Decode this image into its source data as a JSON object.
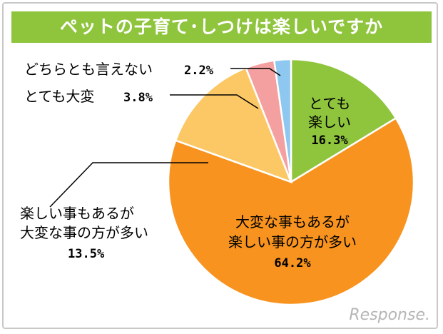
{
  "chart_data": {
    "type": "pie",
    "title": "ペットの子育て･しつけは楽しいですか",
    "slices": [
      {
        "label_lines": [
          "とても",
          "楽しい"
        ],
        "value": 16.3,
        "value_label": "16.3%",
        "color": "#8fc43d"
      },
      {
        "label_lines": [
          "大変な事もあるが",
          "楽しい事の方が多い"
        ],
        "value": 64.2,
        "value_label": "64.2%",
        "color": "#f7931e"
      },
      {
        "label_lines": [
          "楽しい事もあるが",
          "大変な事の方が多い"
        ],
        "value": 13.5,
        "value_label": "13.5%",
        "color": "#fcc865"
      },
      {
        "label_lines": [
          "とても大変"
        ],
        "value": 3.8,
        "value_label": "3.8%",
        "color": "#f4a0a0"
      },
      {
        "label_lines": [
          "どちらとも言えない"
        ],
        "value": 2.2,
        "value_label": "2.2%",
        "color": "#8ec8f0"
      }
    ]
  },
  "watermark": "Response."
}
